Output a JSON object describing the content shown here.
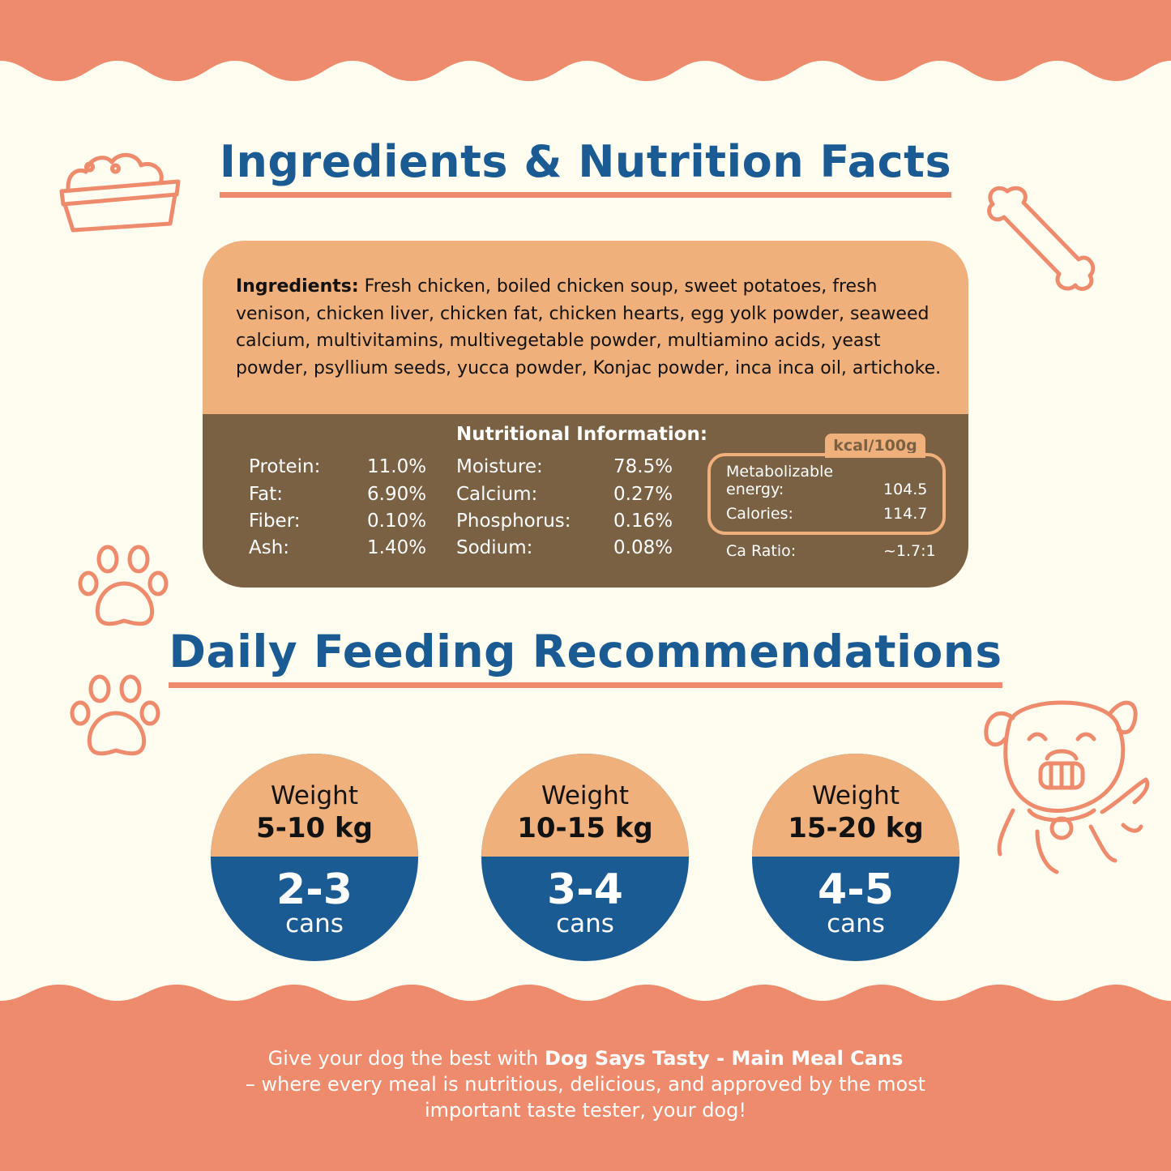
{
  "colors": {
    "background": "#fffdf0",
    "wave": "#ef8b6d",
    "title": "#1b5b93",
    "peach": "#f0b07c",
    "brown": "#7a6144"
  },
  "headings": {
    "ingredients_nutrition": "Ingredients & Nutrition Facts",
    "daily_feeding": "Daily Feeding Recommendations"
  },
  "ingredients": {
    "label": "Ingredients:",
    "text": "Fresh chicken, boiled chicken soup, sweet potatoes, fresh venison, chicken liver, chicken fat, chicken hearts, egg yolk powder, seaweed calcium, multivitamins, multivegetable powder, multiamino acids, yeast powder, psyllium seeds, yucca powder, Konjac powder, inca inca oil, artichoke."
  },
  "nutrition": {
    "title": "Nutritional Information:",
    "left": [
      {
        "name": "Protein:",
        "value": "11.0%"
      },
      {
        "name": "Fat:",
        "value": "6.90%"
      },
      {
        "name": "Fiber:",
        "value": "0.10%"
      },
      {
        "name": "Ash:",
        "value": "1.40%"
      }
    ],
    "middle": [
      {
        "name": "Moisture:",
        "value": "78.5%"
      },
      {
        "name": "Calcium:",
        "value": "0.27%"
      },
      {
        "name": "Phosphorus:",
        "value": "0.16%"
      },
      {
        "name": "Sodium:",
        "value": "0.08%"
      }
    ],
    "kcal_tab": "kcal/100g",
    "energy": {
      "metabolizable_label_1": "Metabolizable",
      "metabolizable_label_2": "energy:",
      "metabolizable_value": "104.5",
      "calories_label": "Calories:",
      "calories_value": "114.7"
    },
    "ca_ratio_label": "Ca Ratio:",
    "ca_ratio_value": "~1.7:1"
  },
  "feeding": [
    {
      "weight_label": "Weight",
      "weight": "5-10 kg",
      "cans": "2-3",
      "unit": "cans"
    },
    {
      "weight_label": "Weight",
      "weight": "10-15 kg",
      "cans": "3-4",
      "unit": "cans"
    },
    {
      "weight_label": "Weight",
      "weight": "15-20 kg",
      "cans": "4-5",
      "unit": "cans"
    }
  ],
  "footer": {
    "line1_pre": "Give your dog the best with ",
    "brand": "Dog Says Tasty - Main Meal Cans",
    "line2": "– where every meal is nutritious, delicious, and approved by the most important taste tester, your dog!"
  },
  "icons": [
    "dog-bowl-icon",
    "bone-icon",
    "paw-icon",
    "paw-icon",
    "happy-dog-icon"
  ]
}
